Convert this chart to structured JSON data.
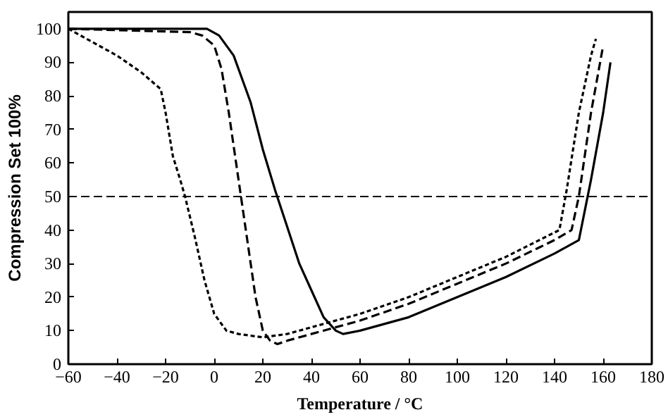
{
  "chart_data": {
    "type": "line",
    "xlabel": "Temperature / °C",
    "ylabel": "Compression Set 100%",
    "xlim": [
      -60,
      180
    ],
    "ylim": [
      0,
      105
    ],
    "xticks": [
      -60,
      -40,
      -20,
      0,
      20,
      40,
      60,
      80,
      100,
      120,
      140,
      160,
      180
    ],
    "yticks": [
      0,
      10,
      20,
      30,
      40,
      50,
      60,
      70,
      80,
      90,
      100
    ],
    "grid": false,
    "series": [
      {
        "color": "#000000",
        "line_style": "solid",
        "x": [
          -60,
          -10,
          -3,
          2,
          8,
          15,
          20,
          25,
          30,
          35,
          40,
          45,
          50,
          53,
          60,
          80,
          100,
          120,
          140,
          150,
          155,
          160,
          163
        ],
        "values": [
          100,
          100,
          100,
          98,
          92,
          78,
          64,
          52,
          41,
          30,
          22,
          14,
          10,
          9,
          10,
          14,
          20,
          26,
          33,
          37,
          55,
          75,
          90
        ]
      },
      {
        "color": "#000000",
        "line_style": "dashed",
        "x": [
          -60,
          -10,
          -5,
          0,
          3,
          6,
          9,
          11,
          14,
          17,
          20,
          23,
          26,
          30,
          40,
          60,
          80,
          100,
          120,
          140,
          147,
          150,
          155,
          160
        ],
        "values": [
          100,
          99,
          98,
          95,
          88,
          75,
          60,
          50,
          35,
          20,
          10,
          7,
          6,
          7,
          9,
          13,
          18,
          24,
          30,
          37,
          40,
          50,
          75,
          95
        ]
      },
      {
        "color": "#000000",
        "line_style": "dotted",
        "x": [
          -60,
          -40,
          -30,
          -22,
          -20,
          -17,
          -14,
          -12,
          -8,
          -4,
          0,
          5,
          10,
          20,
          30,
          40,
          60,
          80,
          100,
          120,
          142,
          145,
          150,
          155,
          157
        ],
        "values": [
          100,
          92,
          87,
          82,
          75,
          62,
          55,
          50,
          38,
          25,
          15,
          10,
          9,
          8,
          9,
          11,
          15,
          20,
          26,
          32,
          40,
          52,
          75,
          92,
          97
        ]
      }
    ],
    "ref_lines": [
      {
        "axis": "y",
        "value": 50,
        "color": "#000000",
        "line_style": "dashed"
      }
    ]
  }
}
